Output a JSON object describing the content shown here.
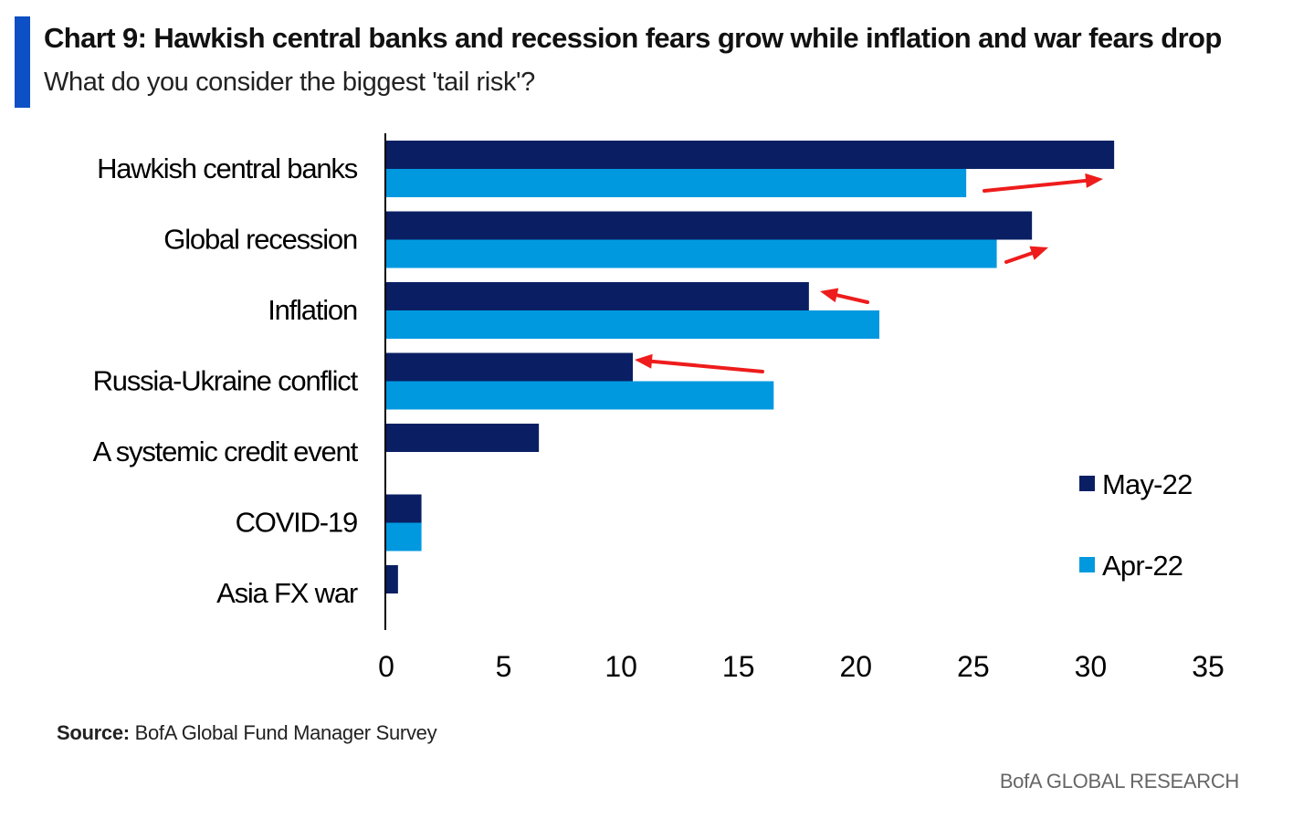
{
  "header": {
    "title": "Chart 9: Hawkish central banks and recession fears grow while inflation and war fears drop",
    "subtitle": "What do you consider the biggest 'tail risk'?"
  },
  "footer": {
    "source_label": "Source:",
    "source_text": "BofA Global Fund Manager Survey",
    "brand": "BofA GLOBAL RESEARCH"
  },
  "colors": {
    "accent": "#0d4fc4",
    "may": "#0a1f63",
    "apr": "#0099e0",
    "arrow": "#ee1c1c"
  },
  "chart_data": {
    "type": "bar",
    "orientation": "horizontal",
    "title": "Chart 9: Hawkish central banks and recession fears grow while inflation and war fears drop",
    "subtitle": "What do you consider the biggest 'tail risk'?",
    "categories": [
      "Hawkish central banks",
      "Global recession",
      "Inflation",
      "Russia-Ukraine conflict",
      "A systemic credit event",
      "COVID-19",
      "Asia FX war"
    ],
    "series": [
      {
        "name": "May-22",
        "color": "#0a1f63",
        "values": [
          31,
          27.5,
          18,
          10.5,
          6.5,
          1.5,
          0.5
        ]
      },
      {
        "name": "Apr-22",
        "color": "#0099e0",
        "values": [
          24.7,
          26,
          21,
          16.5,
          null,
          1.5,
          null
        ]
      }
    ],
    "xlim": [
      0,
      35
    ],
    "xticks": [
      0,
      5,
      10,
      15,
      20,
      25,
      30,
      35
    ],
    "xlabel": "",
    "ylabel": "",
    "grid": false,
    "legend_position": "right",
    "annotations": [
      {
        "type": "arrow",
        "category": "Hawkish central banks",
        "direction": "right",
        "meaning": "increase"
      },
      {
        "type": "arrow",
        "category": "Global recession",
        "direction": "right",
        "meaning": "increase"
      },
      {
        "type": "arrow",
        "category": "Inflation",
        "direction": "left",
        "meaning": "decrease"
      },
      {
        "type": "arrow",
        "category": "Russia-Ukraine conflict",
        "direction": "left",
        "meaning": "decrease"
      }
    ]
  }
}
